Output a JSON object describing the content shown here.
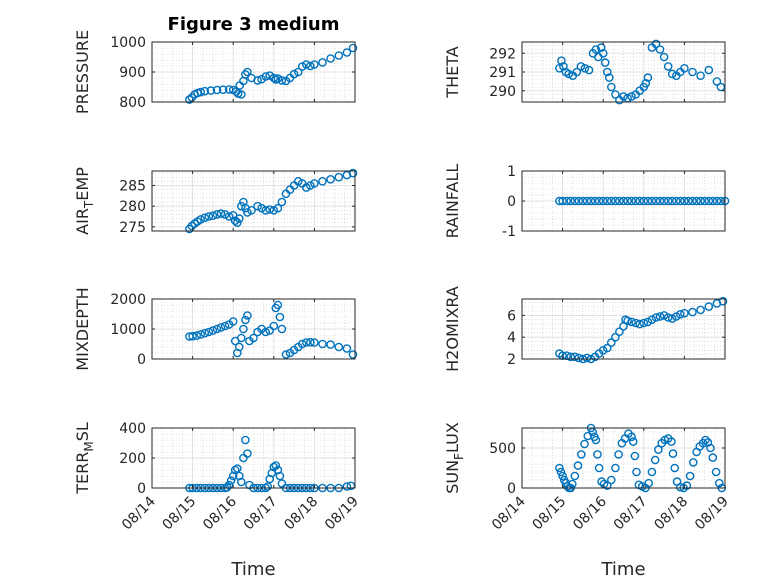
{
  "chart_data": [
    {
      "type": "scatter",
      "title": "Figure 3 medium",
      "ylabel": "PRESSURE",
      "ylabel_sub": null,
      "xlabel": "",
      "xlim": [
        "08/14",
        "08/19"
      ],
      "ylim": [
        800,
        1000
      ],
      "yticks": [
        800,
        900,
        1000
      ],
      "xticks": [
        "08/14",
        "08/15",
        "08/16",
        "08/17",
        "08/18",
        "08/19"
      ],
      "show_xticklabels": false,
      "grid": true,
      "color": "#0072BD",
      "x": [
        0.92,
        0.98,
        1.05,
        1.12,
        1.2,
        1.3,
        1.45,
        1.6,
        1.75,
        1.9,
        2.0,
        2.08,
        2.12,
        2.16,
        2.2,
        2.25,
        2.3,
        2.35,
        2.45,
        2.6,
        2.7,
        2.8,
        2.9,
        3.0,
        3.05,
        3.1,
        3.2,
        3.3,
        3.4,
        3.5,
        3.6,
        3.7,
        3.8,
        3.9,
        4.0,
        4.2,
        4.4,
        4.6,
        4.8,
        4.95
      ],
      "y": [
        808,
        815,
        825,
        830,
        833,
        836,
        838,
        840,
        841,
        842,
        840,
        835,
        828,
        855,
        825,
        870,
        892,
        900,
        880,
        872,
        876,
        885,
        888,
        880,
        875,
        878,
        872,
        870,
        880,
        893,
        900,
        918,
        925,
        920,
        925,
        932,
        945,
        955,
        965,
        980
      ]
    },
    {
      "type": "scatter",
      "title": "",
      "ylabel": "THETA",
      "ylabel_sub": null,
      "xlabel": "",
      "xlim": [
        "08/14",
        "08/19"
      ],
      "ylim": [
        289.4,
        292.6
      ],
      "yticks": [
        290,
        291,
        292
      ],
      "xticks": [
        "08/14",
        "08/15",
        "08/16",
        "08/17",
        "08/18",
        "08/19"
      ],
      "show_xticklabels": false,
      "grid": true,
      "color": "#0072BD",
      "x": [
        0.92,
        0.97,
        1.02,
        1.08,
        1.15,
        1.25,
        1.35,
        1.45,
        1.55,
        1.65,
        1.75,
        1.82,
        1.88,
        1.95,
        2.0,
        2.05,
        2.1,
        2.15,
        2.2,
        2.3,
        2.4,
        2.5,
        2.6,
        2.7,
        2.8,
        2.9,
        3.0,
        3.05,
        3.1,
        3.2,
        3.3,
        3.4,
        3.5,
        3.6,
        3.7,
        3.8,
        3.9,
        4.0,
        4.2,
        4.4,
        4.6,
        4.8,
        4.9
      ],
      "y": [
        291.2,
        291.6,
        291.3,
        291.0,
        290.9,
        290.8,
        291.0,
        291.3,
        291.2,
        291.1,
        292.0,
        292.2,
        291.8,
        292.3,
        292.0,
        291.5,
        291.0,
        290.7,
        290.2,
        289.8,
        289.5,
        289.7,
        289.6,
        289.7,
        289.8,
        290.0,
        290.2,
        290.4,
        290.7,
        292.3,
        292.5,
        292.2,
        291.8,
        291.3,
        290.9,
        290.8,
        291.0,
        291.2,
        291.0,
        290.8,
        291.1,
        290.5,
        290.2
      ]
    },
    {
      "type": "scatter",
      "title": "",
      "ylabel": "AIR",
      "ylabel_sub": "T",
      "ylabel_rest": "EMP",
      "xlabel": "",
      "xlim": [
        "08/14",
        "08/19"
      ],
      "ylim": [
        274,
        288.5
      ],
      "yticks": [
        275,
        280,
        285
      ],
      "xticks": [
        "08/14",
        "08/15",
        "08/16",
        "08/17",
        "08/18",
        "08/19"
      ],
      "show_xticklabels": false,
      "grid": true,
      "color": "#0072BD",
      "x": [
        0.92,
        0.98,
        1.05,
        1.12,
        1.2,
        1.3,
        1.4,
        1.5,
        1.6,
        1.7,
        1.8,
        1.9,
        2.0,
        2.05,
        2.1,
        2.15,
        2.2,
        2.25,
        2.3,
        2.35,
        2.45,
        2.6,
        2.7,
        2.8,
        2.9,
        3.0,
        3.1,
        3.2,
        3.3,
        3.4,
        3.5,
        3.6,
        3.7,
        3.8,
        3.9,
        4.0,
        4.2,
        4.4,
        4.6,
        4.8,
        4.95
      ],
      "y": [
        274.5,
        275.2,
        275.8,
        276.3,
        276.8,
        277.2,
        277.5,
        277.7,
        278.0,
        278.2,
        278.0,
        277.5,
        277.8,
        276.5,
        276.0,
        277.0,
        280.0,
        281.0,
        279.5,
        278.5,
        279.0,
        280.0,
        279.5,
        279.0,
        279.2,
        279.0,
        279.5,
        281.0,
        283.0,
        284.0,
        285.0,
        286.0,
        285.5,
        284.5,
        285.0,
        285.5,
        286.0,
        286.5,
        287.0,
        287.5,
        288.0
      ]
    },
    {
      "type": "scatter",
      "title": "",
      "ylabel": "RAINFALL",
      "ylabel_sub": null,
      "xlabel": "",
      "xlim": [
        "08/14",
        "08/19"
      ],
      "ylim": [
        -1,
        1
      ],
      "yticks": [
        -1,
        0,
        1
      ],
      "xticks": [
        "08/14",
        "08/15",
        "08/16",
        "08/17",
        "08/18",
        "08/19"
      ],
      "show_xticklabels": false,
      "grid": true,
      "color": "#0072BD",
      "x": [
        0.92,
        1.0,
        1.1,
        1.2,
        1.3,
        1.4,
        1.5,
        1.6,
        1.7,
        1.8,
        1.9,
        2.0,
        2.1,
        2.2,
        2.3,
        2.4,
        2.5,
        2.6,
        2.7,
        2.8,
        2.9,
        3.0,
        3.1,
        3.2,
        3.3,
        3.4,
        3.5,
        3.6,
        3.7,
        3.8,
        3.9,
        4.0,
        4.1,
        4.2,
        4.3,
        4.4,
        4.5,
        4.6,
        4.7,
        4.8,
        4.9,
        5.0
      ],
      "y": [
        0,
        0,
        0,
        0,
        0,
        0,
        0,
        0,
        0,
        0,
        0,
        0,
        0,
        0,
        0,
        0,
        0,
        0,
        0,
        0,
        0,
        0,
        0,
        0,
        0,
        0,
        0,
        0,
        0,
        0,
        0,
        0,
        0,
        0,
        0,
        0,
        0,
        0,
        0,
        0,
        0,
        0
      ]
    },
    {
      "type": "scatter",
      "title": "",
      "ylabel": "MIXDEPTH",
      "ylabel_sub": null,
      "xlabel": "",
      "xlim": [
        "08/14",
        "08/19"
      ],
      "ylim": [
        0,
        2000
      ],
      "yticks": [
        0,
        1000,
        2000
      ],
      "xticks": [
        "08/14",
        "08/15",
        "08/16",
        "08/17",
        "08/18",
        "08/19"
      ],
      "show_xticklabels": false,
      "grid": true,
      "color": "#0072BD",
      "x": [
        0.92,
        1.0,
        1.1,
        1.2,
        1.3,
        1.4,
        1.5,
        1.6,
        1.7,
        1.8,
        1.9,
        2.0,
        2.05,
        2.1,
        2.15,
        2.2,
        2.25,
        2.3,
        2.35,
        2.4,
        2.5,
        2.6,
        2.7,
        2.8,
        2.9,
        3.0,
        3.05,
        3.1,
        3.15,
        3.2,
        3.3,
        3.4,
        3.5,
        3.6,
        3.7,
        3.8,
        3.9,
        4.0,
        4.2,
        4.4,
        4.6,
        4.8,
        4.95
      ],
      "y": [
        750,
        760,
        780,
        820,
        860,
        900,
        950,
        1000,
        1050,
        1100,
        1150,
        1250,
        600,
        200,
        400,
        700,
        1000,
        1300,
        1450,
        600,
        700,
        900,
        1000,
        900,
        950,
        1100,
        1700,
        1800,
        1400,
        1000,
        150,
        200,
        300,
        400,
        500,
        550,
        560,
        550,
        500,
        480,
        400,
        350,
        150
      ]
    },
    {
      "type": "scatter",
      "title": "",
      "ylabel": "H2OMIXRA",
      "ylabel_sub": null,
      "xlabel": "",
      "xlim": [
        "08/14",
        "08/19"
      ],
      "ylim": [
        2,
        7.5
      ],
      "yticks": [
        2,
        4,
        6
      ],
      "xticks": [
        "08/14",
        "08/15",
        "08/16",
        "08/17",
        "08/18",
        "08/19"
      ],
      "show_xticklabels": false,
      "grid": true,
      "color": "#0072BD",
      "x": [
        0.92,
        1.0,
        1.1,
        1.2,
        1.3,
        1.4,
        1.5,
        1.6,
        1.7,
        1.8,
        1.9,
        2.0,
        2.1,
        2.2,
        2.3,
        2.4,
        2.5,
        2.55,
        2.6,
        2.7,
        2.8,
        2.9,
        3.0,
        3.1,
        3.2,
        3.3,
        3.4,
        3.5,
        3.6,
        3.7,
        3.8,
        3.9,
        4.0,
        4.2,
        4.4,
        4.6,
        4.8,
        4.95
      ],
      "y": [
        2.5,
        2.3,
        2.3,
        2.2,
        2.2,
        2.1,
        2.0,
        2.1,
        2.0,
        2.2,
        2.5,
        2.8,
        3.0,
        3.5,
        4.0,
        4.5,
        5.0,
        5.6,
        5.5,
        5.4,
        5.3,
        5.2,
        5.3,
        5.4,
        5.6,
        5.8,
        5.9,
        6.0,
        5.8,
        5.7,
        5.9,
        6.1,
        6.2,
        6.3,
        6.5,
        6.8,
        7.1,
        7.3
      ]
    },
    {
      "type": "scatter",
      "title": "",
      "ylabel": "TERR",
      "ylabel_sub": "M",
      "ylabel_rest": "SL",
      "xlabel": "Time",
      "xlim": [
        "08/14",
        "08/19"
      ],
      "ylim": [
        0,
        400
      ],
      "yticks": [
        0,
        200,
        400
      ],
      "xticks": [
        "08/14",
        "08/15",
        "08/16",
        "08/17",
        "08/18",
        "08/19"
      ],
      "show_xticklabels": true,
      "grid": true,
      "color": "#0072BD",
      "x": [
        0.92,
        1.0,
        1.1,
        1.2,
        1.3,
        1.4,
        1.5,
        1.6,
        1.7,
        1.8,
        1.85,
        1.9,
        1.95,
        2.0,
        2.05,
        2.1,
        2.15,
        2.2,
        2.25,
        2.3,
        2.35,
        2.4,
        2.5,
        2.6,
        2.7,
        2.8,
        2.85,
        2.9,
        2.95,
        3.0,
        3.05,
        3.1,
        3.15,
        3.2,
        3.3,
        3.4,
        3.5,
        3.6,
        3.7,
        3.8,
        3.9,
        4.0,
        4.2,
        4.4,
        4.6,
        4.8,
        4.9
      ],
      "y": [
        0,
        0,
        0,
        0,
        0,
        0,
        0,
        0,
        0,
        0,
        5,
        20,
        50,
        80,
        120,
        130,
        80,
        40,
        200,
        320,
        230,
        20,
        0,
        0,
        0,
        0,
        10,
        60,
        100,
        140,
        150,
        120,
        80,
        30,
        0,
        0,
        0,
        0,
        0,
        0,
        0,
        0,
        0,
        0,
        0,
        10,
        15
      ]
    },
    {
      "type": "scatter",
      "title": "",
      "ylabel": "SUN",
      "ylabel_sub": "F",
      "ylabel_rest": "LUX",
      "xlabel": "Time",
      "xlim": [
        "08/14",
        "08/19"
      ],
      "ylim": [
        0,
        750
      ],
      "yticks": [
        0,
        500
      ],
      "xticks": [
        "08/14",
        "08/15",
        "08/16",
        "08/17",
        "08/18",
        "08/19"
      ],
      "show_xticklabels": true,
      "grid": true,
      "color": "#0072BD",
      "x": [
        0.92,
        0.96,
        1.0,
        1.04,
        1.08,
        1.12,
        1.16,
        1.2,
        1.24,
        1.3,
        1.38,
        1.46,
        1.54,
        1.62,
        1.7,
        1.74,
        1.78,
        1.82,
        1.86,
        1.9,
        1.96,
        2.02,
        2.1,
        2.2,
        2.3,
        2.38,
        2.46,
        2.54,
        2.62,
        2.7,
        2.74,
        2.78,
        2.82,
        2.88,
        2.96,
        3.04,
        3.12,
        3.2,
        3.28,
        3.36,
        3.44,
        3.52,
        3.6,
        3.68,
        3.72,
        3.76,
        3.82,
        3.9,
        3.98,
        4.06,
        4.14,
        4.22,
        4.3,
        4.38,
        4.46,
        4.52,
        4.58,
        4.64,
        4.7,
        4.78,
        4.86,
        4.92
      ],
      "y": [
        250,
        200,
        150,
        100,
        60,
        20,
        0,
        0,
        50,
        150,
        280,
        420,
        550,
        650,
        750,
        700,
        640,
        600,
        420,
        250,
        80,
        50,
        30,
        100,
        250,
        420,
        560,
        620,
        680,
        640,
        580,
        400,
        200,
        40,
        20,
        0,
        60,
        200,
        350,
        480,
        560,
        600,
        620,
        580,
        430,
        250,
        80,
        10,
        0,
        30,
        150,
        320,
        450,
        520,
        560,
        600,
        570,
        500,
        380,
        200,
        60,
        0
      ]
    }
  ]
}
